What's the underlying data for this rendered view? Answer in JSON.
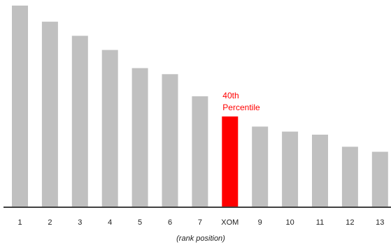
{
  "chart_data": {
    "type": "bar",
    "categories": [
      "1",
      "2",
      "3",
      "4",
      "5",
      "6",
      "7",
      "XOM",
      "9",
      "10",
      "11",
      "12",
      "13"
    ],
    "values": [
      100,
      92,
      85,
      78,
      69,
      66,
      55,
      45,
      40,
      37.5,
      36,
      30,
      27.5
    ],
    "ylim": [
      0,
      100
    ],
    "title": "",
    "xlabel": "(rank position)",
    "ylabel": "",
    "highlight_index": 7,
    "annotation": {
      "line1": "40th",
      "line2": "Percentile"
    },
    "colors": {
      "bar": "#c0c0c0",
      "highlight": "#ff0000",
      "axis": "#404040",
      "text": "#222222"
    },
    "grid": false
  }
}
